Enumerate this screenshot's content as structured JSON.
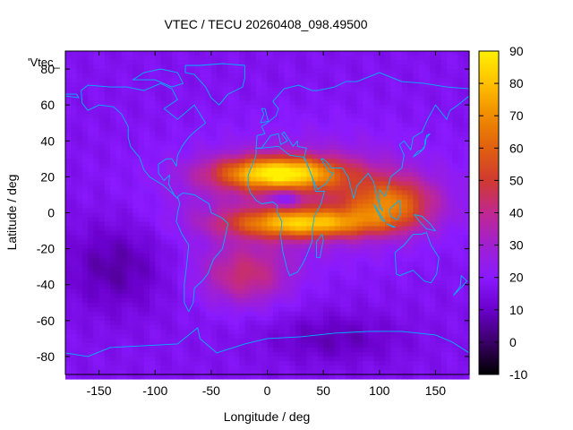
{
  "chart_data": {
    "type": "heatmap",
    "title": "VTEC / TECU 20260408_098.49500",
    "xlabel": "Longitude / deg",
    "ylabel": "Latitude / deg",
    "xlim": [
      -180,
      180
    ],
    "ylim": [
      -90,
      90
    ],
    "x_ticks": [
      -150,
      -100,
      -50,
      0,
      50,
      100,
      150
    ],
    "y_ticks": [
      -80,
      -60,
      -40,
      -20,
      0,
      20,
      40,
      60,
      80
    ],
    "colorbar": {
      "range": [
        -10,
        90
      ],
      "ticks": [
        -10,
        0,
        10,
        20,
        30,
        40,
        50,
        60,
        70,
        80,
        90
      ],
      "palette": [
        "#000000",
        "#3a0066",
        "#6a00cc",
        "#8a1aff",
        "#a020d0",
        "#c02890",
        "#d03a30",
        "#e06010",
        "#f08c00",
        "#ffc000",
        "#fff000"
      ]
    },
    "legend_entry": "'Vtec_",
    "grid": false,
    "background_value": 17,
    "features": [
      {
        "name": "equatorial_anomaly_north",
        "lon": 10,
        "lat": 22,
        "peak": 82
      },
      {
        "name": "equatorial_anomaly_south",
        "lon": 30,
        "lat": -6,
        "peak": 72
      },
      {
        "name": "eastern_crest",
        "lon": 110,
        "lat": 5,
        "peak": 60
      },
      {
        "name": "southern_atlantic_region",
        "lon": -20,
        "lat": -35,
        "peak": 45
      },
      {
        "name": "pacific_minimum",
        "lon": -135,
        "lat": -30,
        "peak": 6
      },
      {
        "name": "antarctic_minimum",
        "lon": 60,
        "lat": -70,
        "peak": 8
      }
    ]
  }
}
